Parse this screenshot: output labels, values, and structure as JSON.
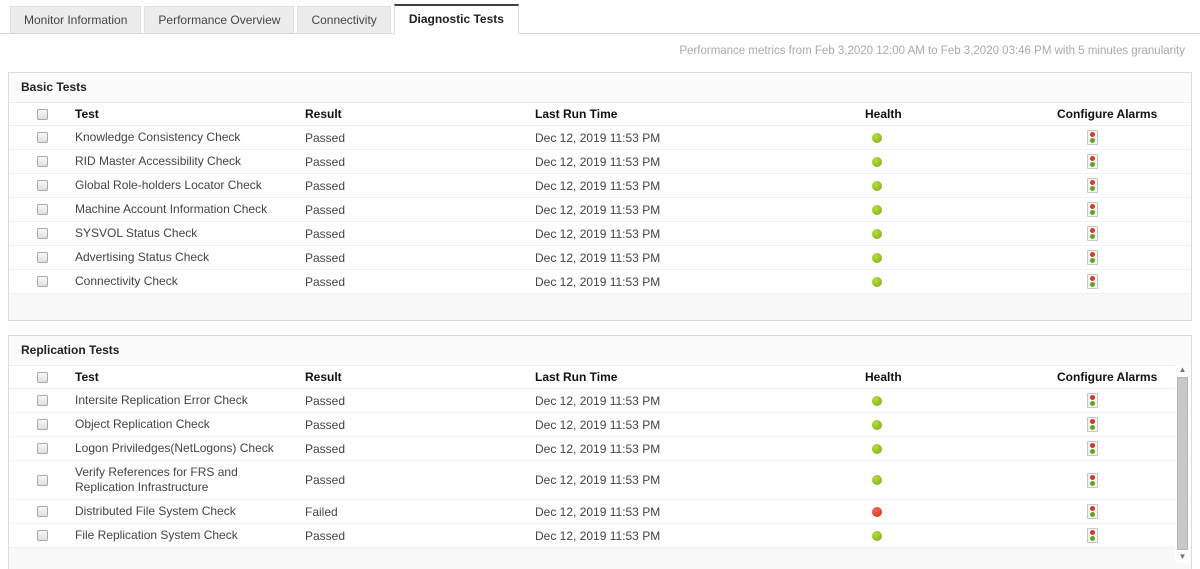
{
  "tabs": [
    {
      "label": "Monitor Information",
      "active": false
    },
    {
      "label": "Performance Overview",
      "active": false
    },
    {
      "label": "Connectivity",
      "active": false
    },
    {
      "label": "Diagnostic Tests",
      "active": true
    }
  ],
  "meta_text": "Performance metrics from Feb 3,2020 12:00 AM to Feb 3,2020 03:46 PM with 5 minutes granularity",
  "columns": {
    "test": "Test",
    "result": "Result",
    "last_run": "Last Run Time",
    "health": "Health",
    "configure": "Configure Alarms"
  },
  "panels": {
    "basic": {
      "title": "Basic Tests",
      "rows": [
        {
          "test": "Knowledge Consistency Check",
          "result": "Passed",
          "time": "Dec 12, 2019 11:53 PM",
          "health": "ok"
        },
        {
          "test": "RID Master Accessibility Check",
          "result": "Passed",
          "time": "Dec 12, 2019 11:53 PM",
          "health": "ok"
        },
        {
          "test": "Global Role-holders Locator Check",
          "result": "Passed",
          "time": "Dec 12, 2019 11:53 PM",
          "health": "ok"
        },
        {
          "test": "Machine Account Information Check",
          "result": "Passed",
          "time": "Dec 12, 2019 11:53 PM",
          "health": "ok"
        },
        {
          "test": "SYSVOL Status Check",
          "result": "Passed",
          "time": "Dec 12, 2019 11:53 PM",
          "health": "ok"
        },
        {
          "test": "Advertising Status Check",
          "result": "Passed",
          "time": "Dec 12, 2019 11:53 PM",
          "health": "ok"
        },
        {
          "test": "Connectivity Check",
          "result": "Passed",
          "time": "Dec 12, 2019 11:53 PM",
          "health": "ok"
        }
      ]
    },
    "replication": {
      "title": "Replication Tests",
      "rows": [
        {
          "test": "Intersite Replication Error Check",
          "result": "Passed",
          "time": "Dec 12, 2019 11:53 PM",
          "health": "ok"
        },
        {
          "test": "Object Replication Check",
          "result": "Passed",
          "time": "Dec 12, 2019 11:53 PM",
          "health": "ok"
        },
        {
          "test": "Logon Priviledges(NetLogons) Check",
          "result": "Passed",
          "time": "Dec 12, 2019 11:53 PM",
          "health": "ok"
        },
        {
          "test": "Verify References for FRS and Replication Infrastructure",
          "result": "Passed",
          "time": "Dec 12, 2019 11:53 PM",
          "health": "ok"
        },
        {
          "test": "Distributed File System Check",
          "result": "Failed",
          "time": "Dec 12, 2019 11:53 PM",
          "health": "critical"
        },
        {
          "test": "File Replication System Check",
          "result": "Passed",
          "time": "Dec 12, 2019 11:53 PM",
          "health": "ok"
        }
      ]
    }
  },
  "colors": {
    "health_ok": "#7aab13",
    "health_critical": "#d92c15"
  }
}
